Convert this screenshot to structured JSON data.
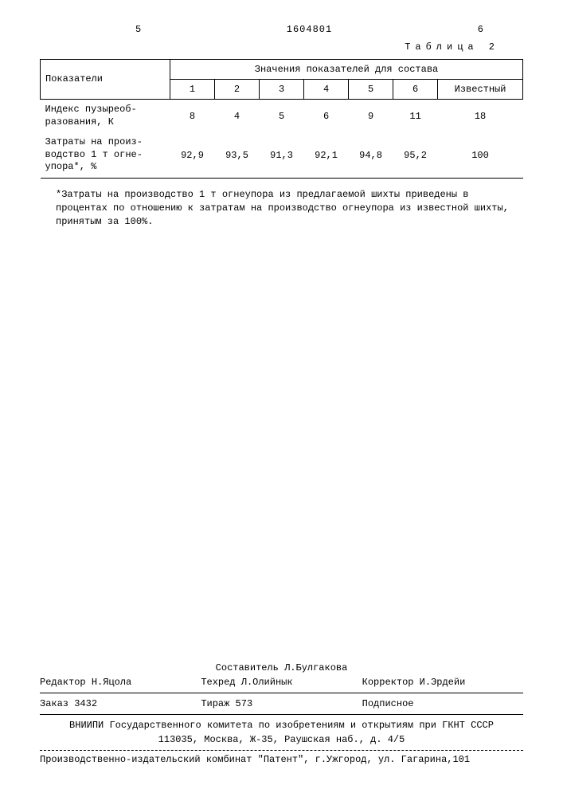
{
  "header": {
    "left_num": "5",
    "doc_number": "1604801",
    "right_num": "6"
  },
  "table": {
    "caption": "Таблица 2",
    "col_header_main": "Показатели",
    "col_header_span": "Значения показателей для состава",
    "subcols": [
      "1",
      "2",
      "3",
      "4",
      "5",
      "6",
      "Известный"
    ],
    "rows": [
      {
        "label": "Индекс пузыреоб-<br>разования, К",
        "values": [
          "8",
          "4",
          "5",
          "6",
          "9",
          "11",
          "18"
        ]
      },
      {
        "label": "Затраты на произ-<br>водство 1 т огне-<br>упора*, %",
        "values": [
          "92,9",
          "93,5",
          "91,3",
          "92,1",
          "94,8",
          "95,2",
          "100"
        ]
      }
    ]
  },
  "footnote": "*Затраты на производство 1 т огнеупора из предлагаемой шихты приведены в процентах по отношению к затратам на производство огнеупора из известной шихты, принятым за 100%.",
  "footer": {
    "compiler_label": "Составитель",
    "compiler_name": "Л.Булгакова",
    "editor_label": "Редактор",
    "editor_name": "Н.Яцола",
    "techred_label": "Техред",
    "techred_name": "Л.Олийнык",
    "corrector_label": "Корректор",
    "corrector_name": "И.Эрдейи",
    "order_label": "Заказ",
    "order_num": "3432",
    "circulation_label": "Тираж",
    "circulation_num": "573",
    "subscription": "Подписное",
    "org_line1": "ВНИИПИ Государственного комитета по изобретениям и открытиям при ГКНТ СССР",
    "org_line2": "113035, Москва, Ж-35, Раушская наб., д. 4/5",
    "publisher": "Производственно-издательский комбинат \"Патент\", г.Ужгород, ул. Гагарина,101"
  }
}
